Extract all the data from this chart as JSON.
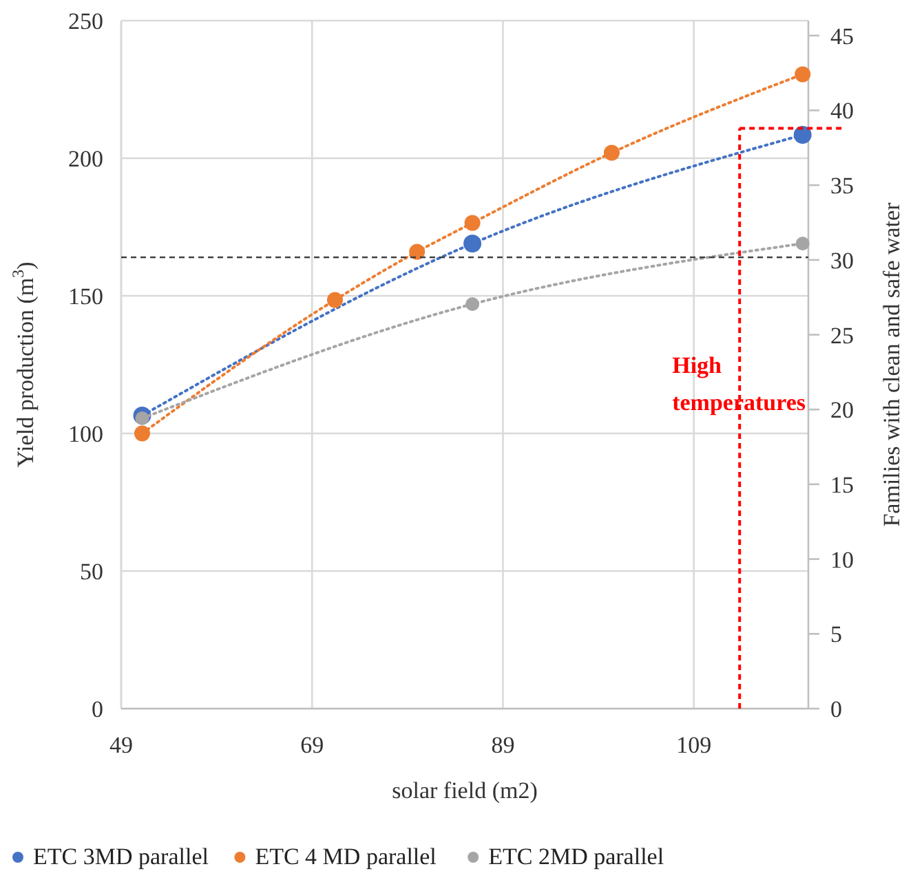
{
  "chart_data": {
    "type": "line",
    "xlabel": "solar field (m2)",
    "ylabel": "Yield production (m$^{3}$)",
    "y2label": "Families with clean and safe water",
    "xlim": [
      49,
      121
    ],
    "xticks": [
      49,
      69,
      89,
      109
    ],
    "ylim": [
      0,
      250
    ],
    "yticks": [
      0,
      50,
      100,
      150,
      200,
      250
    ],
    "y2lim": [
      0,
      46
    ],
    "y2ticks": [
      0,
      5,
      10,
      15,
      20,
      25,
      30,
      35,
      40,
      45
    ],
    "grid": true,
    "legend": "bottom",
    "marker": "circle",
    "line_style": "dotted",
    "series": [
      {
        "name": "ETC 3MD parallel",
        "color": "#4472c4",
        "x": [
          51.2,
          85.8,
          120.4
        ],
        "values": [
          106.5,
          169,
          208.5
        ]
      },
      {
        "name": "ETC 4 MD parallel",
        "color": "#ed7d31",
        "x": [
          51.2,
          71.4,
          80,
          85.8,
          100.4,
          120.4
        ],
        "values": [
          100,
          148.5,
          166,
          176.5,
          202,
          230.5
        ]
      },
      {
        "name": "ETC 2MD parallel",
        "color": "#a5a5a5",
        "x": [
          51.2,
          85.8,
          120.4
        ],
        "values": [
          105.5,
          147,
          169
        ]
      }
    ],
    "ref_lines": [
      {
        "axis": "y",
        "value": 164,
        "color": "#404040",
        "line_style": "dashed"
      },
      {
        "axis": "x",
        "value": 113.8,
        "label": "High temperatures",
        "color": "#ff0000",
        "line_style": "dashed"
      },
      {
        "axis": "y2",
        "value": 38.8,
        "color": "#ff0000",
        "line_style": "dashed"
      }
    ]
  }
}
